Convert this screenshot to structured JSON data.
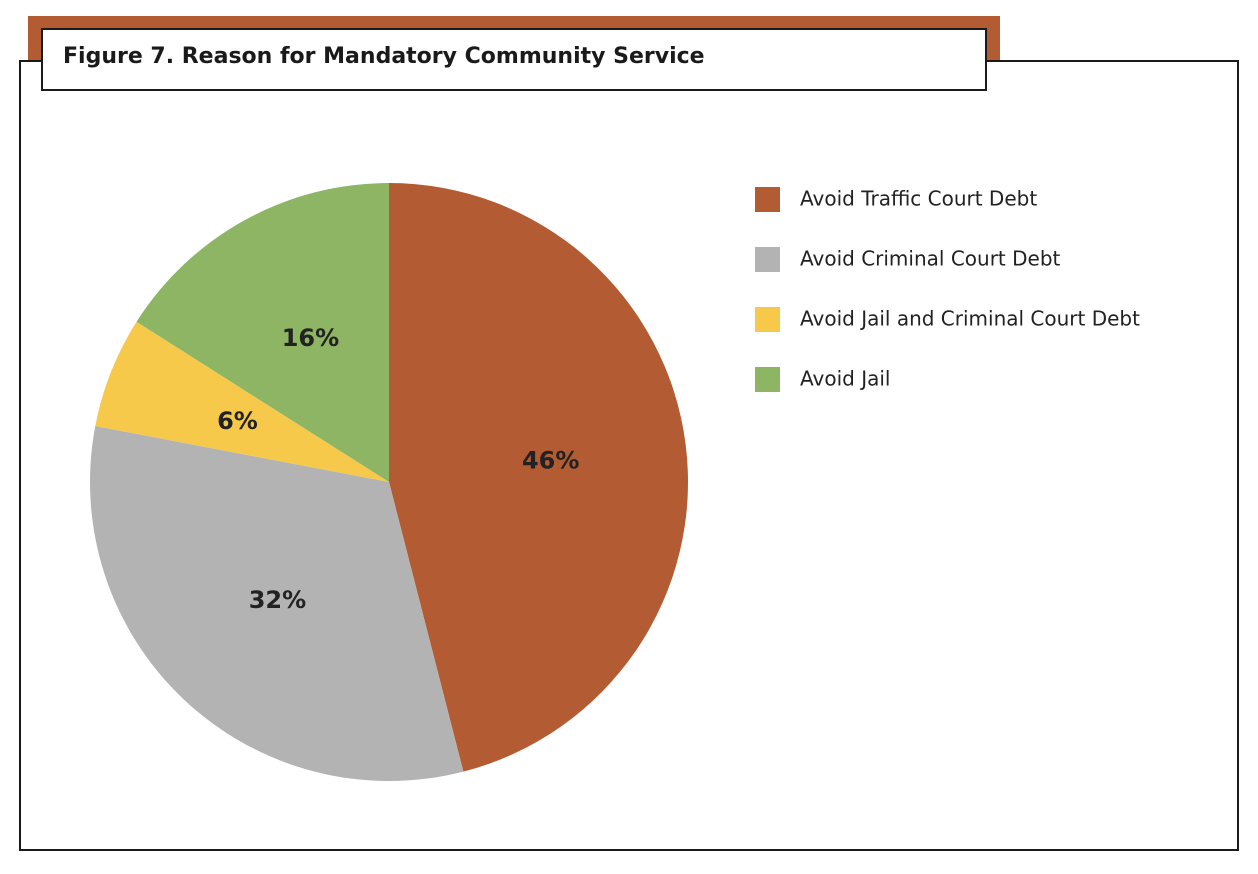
{
  "chart_data": {
    "type": "pie",
    "title": "Figure 7. Reason for Mandatory Community Service",
    "categories": [
      "Avoid Traffic Court Debt",
      "Avoid Criminal Court Debt",
      "Avoid Jail and Criminal Court Debt",
      "Avoid Jail"
    ],
    "values": [
      46,
      32,
      6,
      16
    ],
    "value_labels": [
      "46%",
      "32%",
      "6%",
      "16%"
    ],
    "colors": [
      "#b35c33",
      "#b3b3b3",
      "#f6c94a",
      "#8db563"
    ],
    "legend": "right"
  }
}
